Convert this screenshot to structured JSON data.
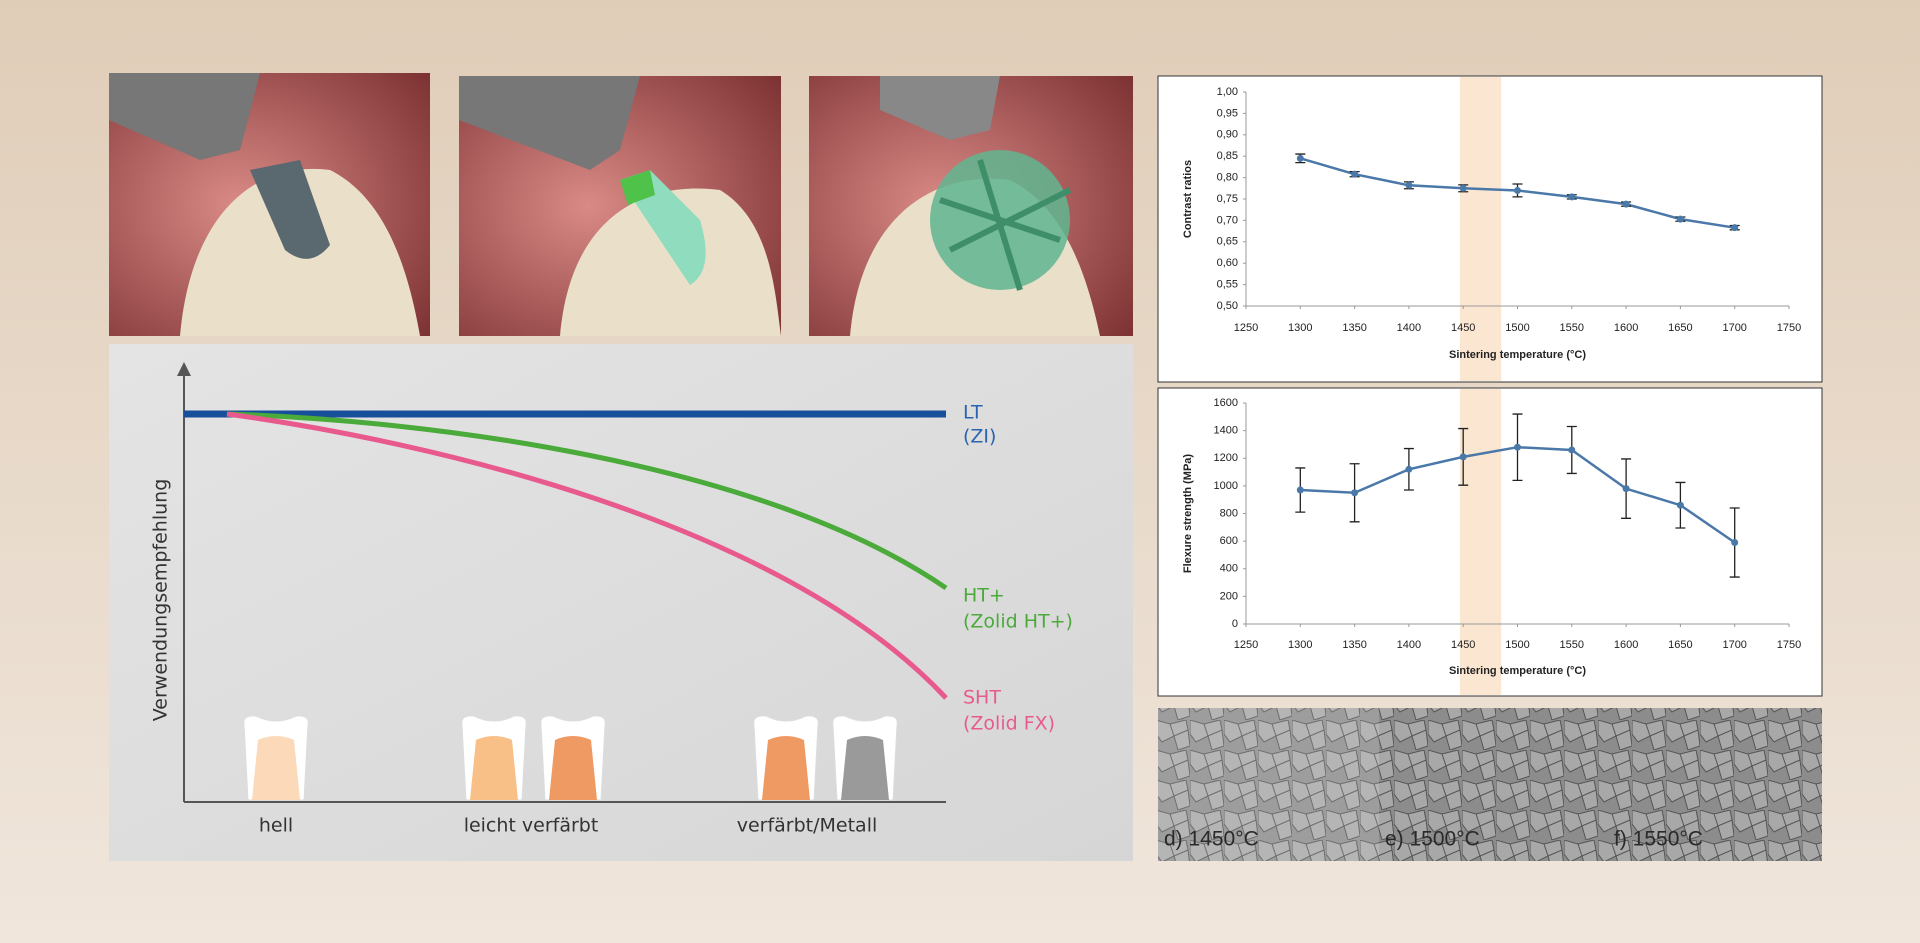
{
  "chart_data": [
    {
      "type": "line",
      "ylabel": "Contrast ratios",
      "xlabel": "Sintering temperature (°C)",
      "color": "#4a78a8",
      "highlight_range": [
        1447,
        1485
      ],
      "highlight_color": "#fbe3cc",
      "x": [
        1300,
        1350,
        1400,
        1450,
        1500,
        1550,
        1600,
        1650,
        1700
      ],
      "values": [
        0.845,
        0.808,
        0.782,
        0.775,
        0.77,
        0.755,
        0.738,
        0.703,
        0.683
      ],
      "errors": [
        0.01,
        0.006,
        0.008,
        0.008,
        0.015,
        0.005,
        0.005,
        0.005,
        0.005
      ],
      "xlim": [
        1250,
        1750
      ],
      "xticks": [
        1250,
        1300,
        1350,
        1400,
        1450,
        1500,
        1550,
        1600,
        1650,
        1700,
        1750
      ],
      "ylim": [
        0.5,
        1.0
      ],
      "yticks": [
        {
          "value": 0.5,
          "label": "0,50"
        },
        {
          "value": 0.55,
          "label": "0,55"
        },
        {
          "value": 0.6,
          "label": "0,60"
        },
        {
          "value": 0.65,
          "label": "0,65"
        },
        {
          "value": 0.7,
          "label": "0,70"
        },
        {
          "value": 0.75,
          "label": "0,75"
        },
        {
          "value": 0.8,
          "label": "0,80"
        },
        {
          "value": 0.85,
          "label": "0,85"
        },
        {
          "value": 0.9,
          "label": "0,90"
        },
        {
          "value": 0.95,
          "label": "0,95"
        },
        {
          "value": 1.0,
          "label": "1,00"
        }
      ]
    },
    {
      "type": "line",
      "ylabel": "Flexure strength (MPa)",
      "xlabel": "Sintering temperature (°C)",
      "color": "#4a78a8",
      "highlight_range": [
        1447,
        1485
      ],
      "highlight_color": "#fbe3cc",
      "x": [
        1300,
        1350,
        1400,
        1450,
        1500,
        1550,
        1600,
        1650,
        1700
      ],
      "values": [
        970,
        950,
        1120,
        1210,
        1280,
        1260,
        980,
        860,
        590
      ],
      "errors": [
        160,
        210,
        150,
        205,
        240,
        170,
        215,
        165,
        250
      ],
      "xlim": [
        1250,
        1750
      ],
      "xticks": [
        1250,
        1300,
        1350,
        1400,
        1450,
        1500,
        1550,
        1600,
        1650,
        1700,
        1750
      ],
      "ylim": [
        0,
        1600
      ],
      "yticks": [
        0,
        200,
        400,
        600,
        800,
        1000,
        1200,
        1400,
        1600
      ]
    }
  ],
  "diagram": {
    "y_label": "Verwendungsempfehlung",
    "lines": [
      {
        "name": "LT",
        "sub": "(ZI)"
      },
      {
        "name": "HT+",
        "sub": "(Zolid HT+)"
      },
      {
        "name": "SHT",
        "sub": "(Zolid FX)"
      }
    ],
    "categories": [
      "hell",
      "leicht verfärbt",
      "verfärbt/Metall"
    ]
  },
  "micrographs": [
    "d) 1450°C",
    "e) 1500°C",
    "f) 1550°C"
  ]
}
